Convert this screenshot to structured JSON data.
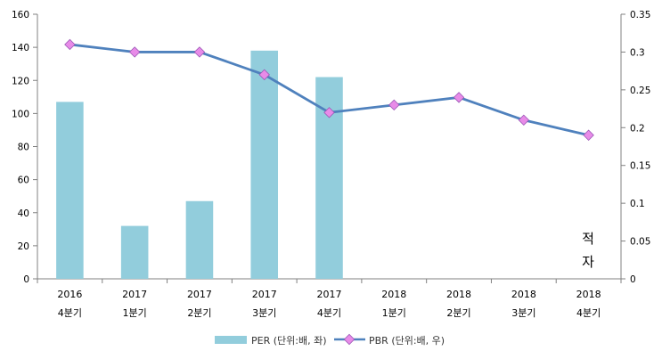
{
  "chart_data": {
    "type": "bar+line",
    "categories": [
      {
        "year": "2016",
        "quarter": "4분기"
      },
      {
        "year": "2017",
        "quarter": "1분기"
      },
      {
        "year": "2017",
        "quarter": "2분기"
      },
      {
        "year": "2017",
        "quarter": "3분기"
      },
      {
        "year": "2017",
        "quarter": "4분기"
      },
      {
        "year": "2018",
        "quarter": "1분기"
      },
      {
        "year": "2018",
        "quarter": "2분기"
      },
      {
        "year": "2018",
        "quarter": "3분기"
      },
      {
        "year": "2018",
        "quarter": "4분기"
      }
    ],
    "series": [
      {
        "name": "PER (단위:배, 좌)",
        "type": "bar",
        "axis": "left",
        "color": "#92cddc",
        "values": [
          107,
          32,
          47,
          138,
          122,
          null,
          null,
          null,
          null
        ]
      },
      {
        "name": "PBR (단위:배, 우)",
        "type": "line",
        "axis": "right",
        "color": "#4f81bd",
        "marker_color": "#e88be8",
        "values": [
          0.31,
          0.3,
          0.3,
          0.27,
          0.22,
          0.23,
          0.24,
          0.21,
          0.19
        ]
      }
    ],
    "left_axis": {
      "ylim": [
        0,
        160
      ],
      "ticks": [
        "0",
        "20",
        "40",
        "60",
        "80",
        "100",
        "120",
        "140",
        "160"
      ]
    },
    "right_axis": {
      "ylim": [
        0,
        0.35
      ],
      "ticks": [
        "0",
        "0.05",
        "0.1",
        "0.15",
        "0.2",
        "0.25",
        "0.3",
        "0.35"
      ]
    },
    "annotation": {
      "lines": [
        "적",
        "자"
      ]
    },
    "legend_position": "bottom",
    "grid": false
  }
}
